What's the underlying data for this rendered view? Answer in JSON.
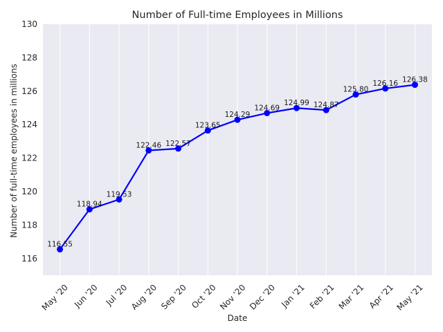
{
  "chart_data": {
    "type": "line",
    "title": "Number of Full-time Employees in Millions",
    "xlabel": "Date",
    "ylabel": "Number of full-time employees in millions",
    "categories": [
      "May '20",
      "Jun '20",
      "Jul '20",
      "Aug '20",
      "Sep '20",
      "Oct '20",
      "Nov '20",
      "Dec '20",
      "Jan '21",
      "Feb '21",
      "Mar '21",
      "Apr '21",
      "May '21"
    ],
    "values": [
      116.55,
      118.94,
      119.53,
      122.46,
      122.57,
      123.65,
      124.29,
      124.69,
      124.99,
      124.87,
      125.8,
      126.16,
      126.38
    ],
    "data_labels": [
      "116.55",
      "118.94",
      "119.53",
      "122.46",
      "122.57",
      "123.65",
      "124.29",
      "124.69",
      "124.99",
      "124.87",
      "125.80",
      "126.16",
      "126.38"
    ],
    "ylim": [
      115,
      130
    ],
    "yticks": [
      "116",
      "118",
      "120",
      "122",
      "124",
      "126",
      "128",
      "130"
    ],
    "grid": true,
    "line_color": "#0000ff",
    "marker_color": "#0000ff",
    "background_color": "#eaeaf2",
    "grid_color": "#ffffff"
  }
}
